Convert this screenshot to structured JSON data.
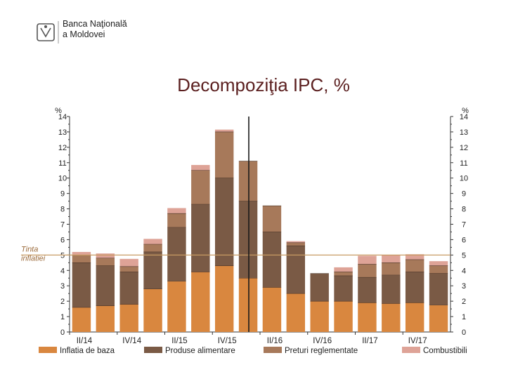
{
  "header": {
    "bank_name_line1": "Banca Naţională",
    "bank_name_line2": "a Moldovei"
  },
  "slide": {
    "title": "Decompoziţia IPC, %"
  },
  "colors": {
    "core": "#d9873f",
    "food": "#7a5a45",
    "regulated": "#a7795a",
    "fuel": "#dea397",
    "target_line": "#c79a63",
    "divider": "#1a1a1a",
    "axis": "#333333",
    "target_label": "#9b6a3a"
  },
  "chart_data": {
    "type": "bar",
    "stacked": true,
    "x_tick_labels": [
      "II/14",
      "IV/14",
      "II/15",
      "IV/15",
      "II/16",
      "IV/16",
      "II/17",
      "IV/17"
    ],
    "n_bars": 16,
    "y_unit_left": "%",
    "y_unit_right": "%",
    "ylim": [
      0,
      14
    ],
    "yticks": [
      0,
      1,
      2,
      3,
      4,
      5,
      6,
      7,
      8,
      9,
      10,
      11,
      12,
      13,
      14
    ],
    "inflation_target": {
      "value": 5,
      "label_line1": "Tinta",
      "label_line2": "inflatiei"
    },
    "divider_after_bar": 8,
    "series": [
      {
        "name": "Inflatia de baza",
        "color_key": "core",
        "values": [
          1.6,
          1.7,
          1.8,
          2.8,
          3.3,
          3.9,
          4.3,
          3.5,
          2.9,
          2.5,
          2.0,
          2.0,
          1.9,
          1.85,
          1.9,
          1.75
        ]
      },
      {
        "name": "Produse alimentare",
        "color_key": "food",
        "values": [
          2.9,
          2.6,
          2.1,
          2.4,
          3.5,
          4.4,
          5.7,
          5.0,
          3.6,
          3.1,
          1.8,
          1.65,
          1.65,
          1.85,
          2.0,
          2.05
        ]
      },
      {
        "name": "Preturi reglementate",
        "color_key": "regulated",
        "values": [
          0.5,
          0.5,
          0.35,
          0.5,
          0.9,
          2.2,
          3.0,
          2.6,
          1.7,
          0.2,
          0.0,
          0.25,
          0.85,
          0.8,
          0.8,
          0.5
        ]
      },
      {
        "name": "Combustibili",
        "color_key": "fuel",
        "values": [
          0.2,
          0.3,
          0.5,
          0.35,
          0.35,
          0.35,
          0.15,
          0.0,
          0.0,
          0.1,
          0.0,
          0.3,
          0.55,
          0.5,
          0.35,
          0.3
        ]
      }
    ]
  }
}
